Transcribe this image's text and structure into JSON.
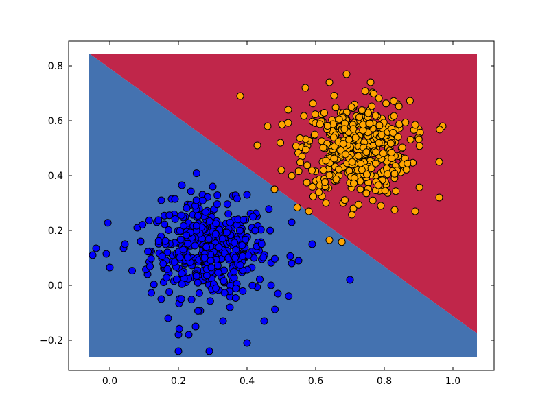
{
  "chart_data": {
    "type": "scatter",
    "title": "",
    "xlabel": "",
    "ylabel": "",
    "xlim": [
      -0.12,
      1.12
    ],
    "ylim": [
      -0.31,
      0.89
    ],
    "x_ticks": [
      0.0,
      0.2,
      0.4,
      0.6,
      0.8,
      1.0
    ],
    "x_tick_labels": [
      "0.0",
      "0.2",
      "0.4",
      "0.6",
      "0.8",
      "1.0"
    ],
    "y_ticks": [
      -0.2,
      0.0,
      0.2,
      0.4,
      0.6,
      0.8
    ],
    "y_tick_labels": [
      "−0.2",
      "0.0",
      "0.2",
      "0.4",
      "0.6",
      "0.8"
    ],
    "grid": false,
    "legend": "none",
    "decision_regions": {
      "x_range": [
        -0.06,
        1.07
      ],
      "y_range": [
        -0.26,
        0.845
      ],
      "boundary_line": [
        [
          -0.06,
          0.845
        ],
        [
          1.07,
          -0.175
        ]
      ],
      "upper_color": "#c0264a",
      "lower_color": "#4472b0"
    },
    "series": [
      {
        "color": "#0000ff",
        "edge_color": "#000000",
        "center": [
          0.29,
          0.13
        ],
        "spread": [
          0.1,
          0.1
        ],
        "points": [
          [
            -0.05,
            0.11
          ],
          [
            -0.04,
            0.135
          ],
          [
            -0.01,
            0.115
          ],
          [
            0.0,
            0.065
          ],
          [
            0.04,
            0.135
          ],
          [
            0.15,
            0.31
          ],
          [
            0.18,
            0.315
          ],
          [
            0.21,
            0.365
          ],
          [
            0.27,
            0.33
          ],
          [
            0.3,
            0.36
          ],
          [
            0.4,
            0.33
          ],
          [
            0.48,
            0.35
          ],
          [
            0.53,
            0.23
          ],
          [
            0.59,
            0.15
          ],
          [
            0.55,
            0.09
          ],
          [
            0.53,
            0.08
          ],
          [
            0.49,
            -0.03
          ],
          [
            0.47,
            0.0
          ],
          [
            0.45,
            -0.13
          ],
          [
            0.4,
            -0.21
          ],
          [
            0.29,
            -0.24
          ],
          [
            0.2,
            -0.24
          ],
          [
            0.2,
            -0.18
          ],
          [
            0.23,
            -0.18
          ],
          [
            0.25,
            -0.15
          ],
          [
            0.17,
            -0.12
          ],
          [
            0.15,
            -0.05
          ],
          [
            0.11,
            0.04
          ],
          [
            0.08,
            0.21
          ],
          [
            0.09,
            0.16
          ],
          [
            0.7,
            0.02
          ],
          [
            0.35,
            -0.08
          ],
          [
            0.33,
            -0.13
          ],
          [
            0.26,
            0.28
          ],
          [
            0.22,
            0.25
          ],
          [
            0.38,
            0.22
          ],
          [
            0.34,
            0.12
          ],
          [
            0.28,
            0.08
          ],
          [
            0.24,
            0.1
          ],
          [
            0.31,
            0.19
          ],
          [
            0.36,
            0.03
          ],
          [
            0.21,
            0.01
          ],
          [
            0.18,
            0.15
          ],
          [
            0.42,
            0.1
          ],
          [
            0.3,
            -0.02
          ]
        ]
      },
      {
        "color": "#ffa500",
        "edge_color": "#000000",
        "center": [
          0.72,
          0.5
        ],
        "spread": [
          0.09,
          0.1
        ],
        "points": [
          [
            0.38,
            0.69
          ],
          [
            0.43,
            0.51
          ],
          [
            0.48,
            0.35
          ],
          [
            0.58,
            0.27
          ],
          [
            0.64,
            0.165
          ],
          [
            0.63,
            0.3
          ],
          [
            0.68,
            0.3
          ],
          [
            0.71,
            0.28
          ],
          [
            0.79,
            0.29
          ],
          [
            0.83,
            0.275
          ],
          [
            0.89,
            0.27
          ],
          [
            0.96,
            0.32
          ],
          [
            0.96,
            0.45
          ],
          [
            0.97,
            0.58
          ],
          [
            0.9,
            0.57
          ],
          [
            0.84,
            0.66
          ],
          [
            0.76,
            0.74
          ],
          [
            0.69,
            0.77
          ],
          [
            0.64,
            0.74
          ],
          [
            0.57,
            0.72
          ],
          [
            0.52,
            0.64
          ],
          [
            0.46,
            0.58
          ],
          [
            0.5,
            0.42
          ],
          [
            0.69,
            0.55
          ],
          [
            0.74,
            0.62
          ],
          [
            0.81,
            0.5
          ],
          [
            0.62,
            0.45
          ],
          [
            0.7,
            0.4
          ],
          [
            0.77,
            0.44
          ],
          [
            0.66,
            0.6
          ],
          [
            0.58,
            0.52
          ],
          [
            0.86,
            0.43
          ],
          [
            0.73,
            0.35
          ],
          [
            0.6,
            0.38
          ],
          [
            0.79,
            0.57
          ]
        ]
      }
    ]
  }
}
